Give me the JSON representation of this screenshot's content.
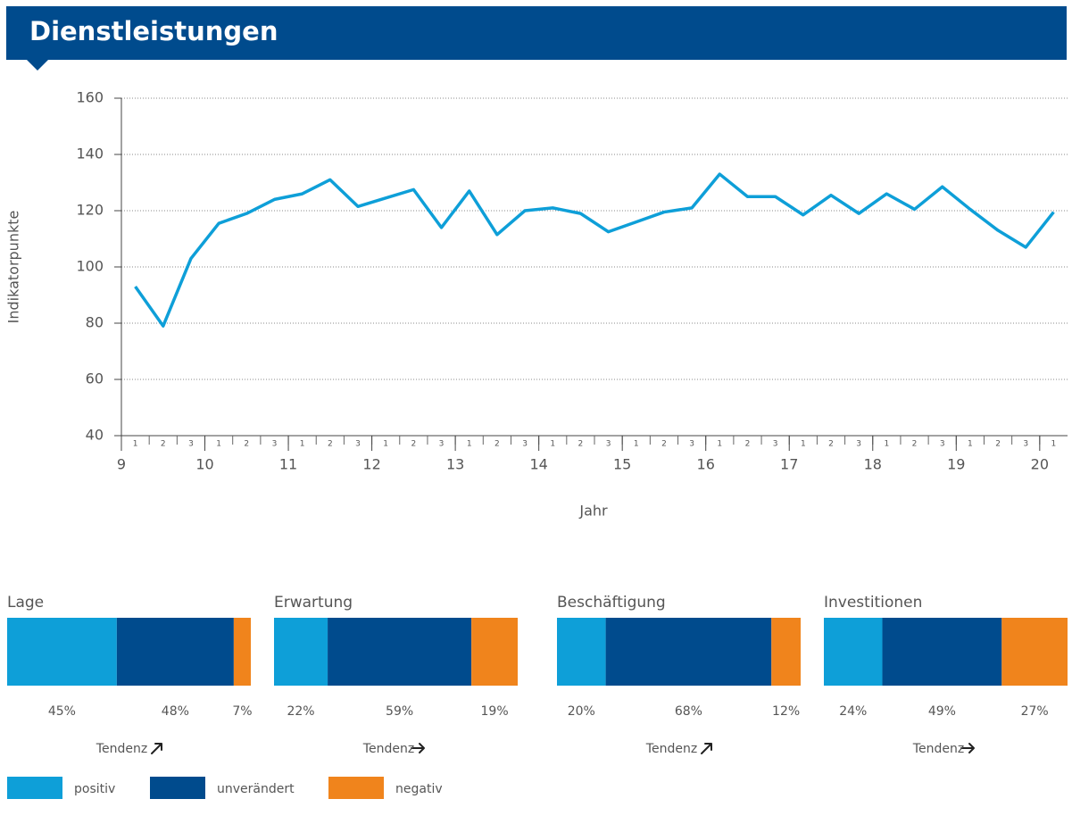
{
  "header": {
    "title": "Dienstleistungen"
  },
  "chart_data": {
    "type": "line",
    "ylabel": "Indikatorpunkte",
    "xlabel": "Jahr",
    "categories": [
      "1",
      "2",
      "3",
      "1",
      "2",
      "3",
      "1",
      "2",
      "3",
      "1",
      "2",
      "3",
      "1",
      "2",
      "3",
      "1",
      "2",
      "3",
      "1",
      "2",
      "3",
      "1",
      "2",
      "3",
      "1",
      "2",
      "3",
      "1",
      "2",
      "3",
      "1",
      "2",
      "3",
      "1"
    ],
    "values": [
      93,
      79,
      103,
      115.5,
      119,
      124,
      126,
      131,
      121.5,
      124.5,
      127.5,
      114,
      127,
      111.5,
      120,
      121,
      119,
      112.5,
      116,
      119.5,
      121,
      133,
      125,
      125,
      118.5,
      125.5,
      119,
      126,
      120.5,
      128.5,
      120.5,
      113,
      107,
      119.5
    ],
    "color": "#0e9fd8",
    "ylim": [
      40,
      160
    ],
    "yticks": [
      40,
      60,
      80,
      100,
      120,
      140,
      160
    ],
    "xticks": [
      9,
      10,
      11,
      12,
      13,
      14,
      15,
      16,
      17,
      18,
      19,
      20
    ],
    "grid": true
  },
  "panels": [
    {
      "title": "Lage",
      "values": [
        45,
        48,
        7
      ],
      "value_labels": [
        "45%",
        "48%",
        "7%"
      ],
      "tendency": "Tendenz"
    },
    {
      "title": "Erwartung",
      "values": [
        22,
        59,
        19
      ],
      "value_labels": [
        "22%",
        "59%",
        "19%"
      ],
      "tendency": "Tendenz"
    },
    {
      "title": "Beschäftigung",
      "values": [
        20,
        68,
        12
      ],
      "value_labels": [
        "20%",
        "68%",
        "12%"
      ],
      "tendency": "Tendenz"
    },
    {
      "title": "Investitionen",
      "values": [
        24,
        49,
        27
      ],
      "value_labels": [
        "24%",
        "49%",
        "27%"
      ],
      "tendency": "Tendenz"
    }
  ],
  "legend": [
    {
      "name": "positiv",
      "color": "#0e9fd8"
    },
    {
      "name": "unverändert",
      "color": "#004b8d"
    },
    {
      "name": "negativ",
      "color": "#f0841c"
    }
  ]
}
